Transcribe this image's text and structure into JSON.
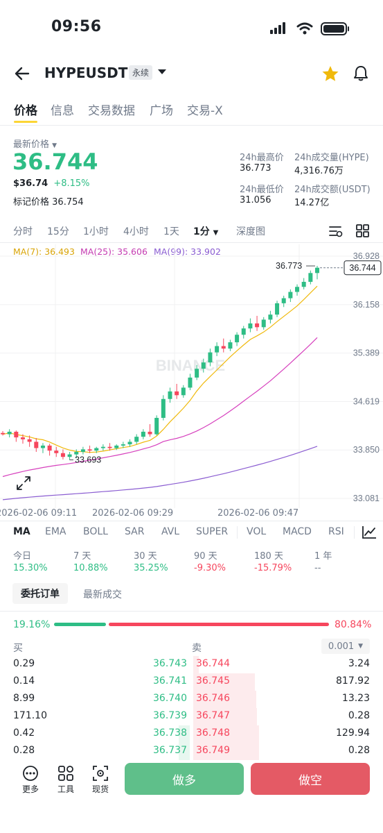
{
  "status_bar": {
    "time": "09:56"
  },
  "header": {
    "pair": "HYPEUSDT",
    "contract_type": "永续"
  },
  "tabs": [
    {
      "label": "价格"
    },
    {
      "label": "信息"
    },
    {
      "label": "交易数据"
    },
    {
      "label": "广场"
    },
    {
      "label": "交易-X"
    }
  ],
  "price": {
    "label": "最新价格",
    "last": "36.744",
    "usd": "$36.74",
    "change": "+8.15%",
    "mark_label": "标记价格",
    "mark_value": "36.754"
  },
  "stats": {
    "high_label": "24h最高价",
    "high": "36.773",
    "vol_hype_label": "24h成交量(HYPE)",
    "vol_hype": "4,316.76万",
    "low_label": "24h最低价",
    "low": "31.056",
    "vol_usdt_label": "24h成交额(USDT)",
    "vol_usdt": "14.27亿"
  },
  "intervals": [
    "分时",
    "15分",
    "1小时",
    "4小时",
    "1天",
    "1分",
    "深度图"
  ],
  "ma_legend": {
    "ma7": "MA(7): 36.493",
    "ma25": "MA(25): 35.606",
    "ma99": "MA(99): 33.902",
    "colors": {
      "ma7": "#f0b90b",
      "ma25": "#d63fbd",
      "ma99": "#8a5cd1"
    }
  },
  "chart": {
    "y_ticks": [
      "36.928",
      "36.158",
      "35.389",
      "34.619",
      "33.850",
      "33.081"
    ],
    "x_ticks": [
      "2026-02-06 09:11",
      "2026-02-06 09:29",
      "2026-02-06 09:47"
    ],
    "high_marker": "36.773",
    "low_marker": "33.693",
    "current_price_tag": "36.744",
    "watermark": "BINANCE",
    "up_color": "#2ebd85",
    "down_color": "#f6465d"
  },
  "chart_data": {
    "type": "candlestick",
    "ylim": [
      33.081,
      36.928
    ],
    "candles": [
      [
        34.12,
        34.15,
        34.1,
        34.08
      ],
      [
        34.1,
        34.18,
        34.14,
        34.05
      ],
      [
        34.14,
        34.16,
        34.05,
        33.98
      ],
      [
        34.05,
        34.1,
        34.02,
        33.95
      ],
      [
        34.02,
        34.08,
        33.98,
        33.9
      ],
      [
        33.98,
        34.04,
        33.88,
        33.82
      ],
      [
        33.88,
        33.96,
        33.92,
        33.8
      ],
      [
        33.92,
        33.95,
        33.84,
        33.76
      ],
      [
        33.84,
        33.9,
        33.8,
        33.74
      ],
      [
        33.8,
        33.86,
        33.74,
        33.7
      ],
      [
        33.74,
        33.82,
        33.78,
        33.69
      ],
      [
        33.78,
        33.86,
        33.82,
        33.72
      ],
      [
        33.82,
        33.9,
        33.86,
        33.78
      ],
      [
        33.86,
        33.92,
        33.84,
        33.8
      ],
      [
        33.84,
        33.9,
        33.88,
        33.8
      ],
      [
        33.88,
        33.94,
        33.9,
        33.84
      ],
      [
        33.9,
        33.96,
        33.88,
        33.84
      ],
      [
        33.88,
        33.94,
        33.92,
        33.85
      ],
      [
        33.92,
        33.98,
        33.94,
        33.88
      ],
      [
        33.94,
        34.02,
        33.98,
        33.9
      ],
      [
        33.98,
        34.1,
        34.06,
        33.94
      ],
      [
        34.06,
        34.18,
        34.14,
        34.02
      ],
      [
        34.14,
        34.26,
        34.1,
        34.06
      ],
      [
        34.1,
        34.4,
        34.36,
        34.08
      ],
      [
        34.36,
        34.72,
        34.66,
        34.32
      ],
      [
        34.66,
        34.84,
        34.78,
        34.6
      ],
      [
        34.78,
        34.9,
        34.72,
        34.66
      ],
      [
        34.72,
        34.88,
        34.84,
        34.68
      ],
      [
        34.84,
        35.06,
        35.0,
        34.8
      ],
      [
        35.0,
        35.2,
        35.14,
        34.96
      ],
      [
        35.14,
        35.3,
        35.24,
        35.08
      ],
      [
        35.24,
        35.46,
        35.4,
        35.18
      ],
      [
        35.4,
        35.56,
        35.5,
        35.34
      ],
      [
        35.5,
        35.62,
        35.46,
        35.4
      ],
      [
        35.46,
        35.6,
        35.56,
        35.42
      ],
      [
        35.56,
        35.72,
        35.68,
        35.5
      ],
      [
        35.68,
        35.82,
        35.78,
        35.62
      ],
      [
        35.78,
        35.94,
        35.86,
        35.72
      ],
      [
        35.86,
        35.98,
        35.8,
        35.74
      ],
      [
        35.8,
        35.96,
        35.92,
        35.76
      ],
      [
        35.92,
        36.06,
        36.0,
        35.86
      ],
      [
        36.0,
        36.22,
        36.18,
        35.96
      ],
      [
        36.18,
        36.3,
        36.26,
        36.12
      ],
      [
        36.26,
        36.4,
        36.36,
        36.2
      ],
      [
        36.36,
        36.48,
        36.44,
        36.3
      ],
      [
        36.44,
        36.58,
        36.52,
        36.4
      ],
      [
        36.52,
        36.7,
        36.66,
        36.48
      ],
      [
        36.66,
        36.773,
        36.744,
        36.56
      ]
    ],
    "candle_format": "open, high, close, low"
  },
  "indicators": [
    "MA",
    "EMA",
    "BOLL",
    "SAR",
    "AVL",
    "SUPER",
    "VOL",
    "MACD",
    "RSI"
  ],
  "performance": [
    {
      "label": "今日",
      "value": "15.30%",
      "dir": "up"
    },
    {
      "label": "7 天",
      "value": "10.88%",
      "dir": "up"
    },
    {
      "label": "30 天",
      "value": "35.25%",
      "dir": "up"
    },
    {
      "label": "90 天",
      "value": "-9.30%",
      "dir": "down"
    },
    {
      "label": "180 天",
      "value": "-15.79%",
      "dir": "down"
    },
    {
      "label": "1 年",
      "value": "--",
      "dir": "none"
    }
  ],
  "orderbook": {
    "tab_active": "委托订单",
    "tab_other": "最新成交",
    "buy_pct": "19.16%",
    "sell_pct": "80.84%",
    "buy_ratio": 0.1916,
    "buy_label": "买",
    "sell_label": "卖",
    "precision": "0.001",
    "rows": [
      {
        "bid_qty": "0.29",
        "bid": "36.743",
        "ask": "36.744",
        "ask_qty": "3.24",
        "ask_depth": 0.08
      },
      {
        "bid_qty": "0.14",
        "bid": "36.741",
        "ask": "36.745",
        "ask_qty": "817.92",
        "ask_depth": 0.94
      },
      {
        "bid_qty": "8.99",
        "bid": "36.740",
        "ask": "36.746",
        "ask_qty": "13.23",
        "ask_depth": 0.96
      },
      {
        "bid_qty": "171.10",
        "bid": "36.739",
        "ask": "36.747",
        "ask_qty": "0.28",
        "ask_depth": 0.97
      },
      {
        "bid_qty": "0.42",
        "bid": "36.738",
        "ask": "36.748",
        "ask_qty": "129.94",
        "ask_depth": 1.0
      },
      {
        "bid_qty": "0.28",
        "bid": "36.737",
        "ask": "36.749",
        "ask_qty": "0.28",
        "ask_depth": 1.0
      }
    ]
  },
  "bottom_bar": {
    "more": "更多",
    "tools": "工具",
    "spot": "现货",
    "long": "做多",
    "short": "做空"
  }
}
